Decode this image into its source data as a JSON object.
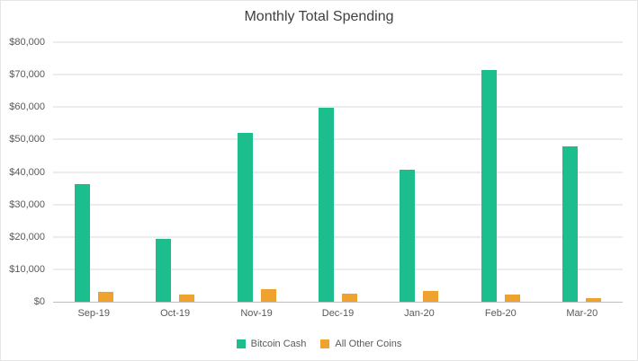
{
  "chart_data": {
    "type": "bar",
    "title": "Monthly Total Spending",
    "categories": [
      "Sep-19",
      "Oct-19",
      "Nov-19",
      "Dec-19",
      "Jan-20",
      "Feb-20",
      "Mar-20"
    ],
    "series": [
      {
        "name": "Bitcoin Cash",
        "color": "#1cbe8e",
        "values": [
          36200,
          19500,
          52000,
          59800,
          40800,
          71500,
          48000
        ]
      },
      {
        "name": "All Other Coins",
        "color": "#f0a22e",
        "values": [
          3000,
          2200,
          3800,
          2500,
          3200,
          2200,
          1200
        ]
      }
    ],
    "ylim": [
      0,
      80000
    ],
    "ytick_step": 10000,
    "ytick_labels": [
      "$0",
      "$10,000",
      "$20,000",
      "$30,000",
      "$40,000",
      "$50,000",
      "$60,000",
      "$70,000",
      "$80,000"
    ],
    "grid": true,
    "legend_position": "bottom",
    "colors": {
      "title_text": "#404040",
      "axis_text": "#595959",
      "gridline": "#d9d9d9",
      "axis_line": "#bfbfbf",
      "background": "#ffffff"
    }
  }
}
